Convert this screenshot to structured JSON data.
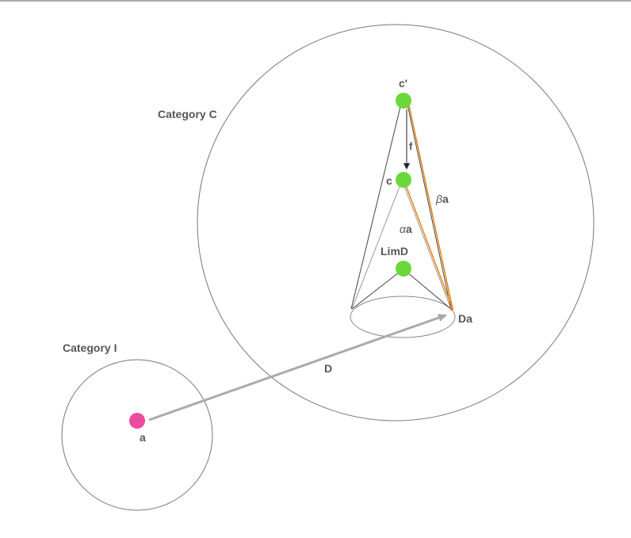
{
  "diagram": {
    "category_c_label": "Category C",
    "category_i_label": "Category I",
    "functor_label": "D",
    "object_a_label": "a",
    "object_da_label": "Da",
    "object_c_prime_label": "c'",
    "object_c_label": "c",
    "object_limd_label": "LimD",
    "morphism_f_label": "f",
    "alpha_greek": "α",
    "beta_greek": "β",
    "alpha_suffix": "a",
    "beta_suffix": "a"
  },
  "colors": {
    "object_green": "#6ad83a",
    "object_pink": "#ee4aa0",
    "functor_arrow": "#aaaaaa",
    "cone_orange": "#e8820f",
    "outline": "#666666",
    "label": "#555555"
  }
}
